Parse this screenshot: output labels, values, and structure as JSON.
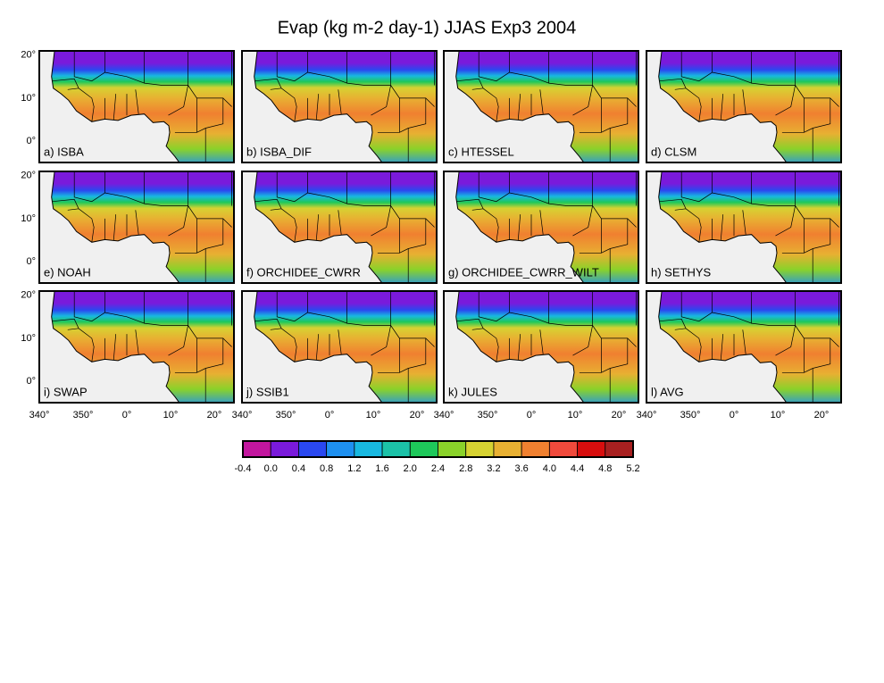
{
  "title": "Evap (kg m-2 day-1) JJAS Exp3 2004",
  "panels": [
    {
      "label": "a) ISBA"
    },
    {
      "label": "b) ISBA_DIF"
    },
    {
      "label": "c) HTESSEL"
    },
    {
      "label": "d) CLSM"
    },
    {
      "label": "e) NOAH"
    },
    {
      "label": "f) ORCHIDEE_CWRR"
    },
    {
      "label": "g) ORCHIDEE_CWRR_WILT"
    },
    {
      "label": "h) SETHYS"
    },
    {
      "label": "i) SWAP"
    },
    {
      "label": "j) SSIB1"
    },
    {
      "label": "k) JULES"
    },
    {
      "label": "l) AVG"
    }
  ],
  "lat_ticks": [
    "20°",
    "10°",
    "0°"
  ],
  "lon_ticks": [
    "340°",
    "350°",
    "0°",
    "10°",
    "20°"
  ],
  "colorbar": {
    "colors": [
      "#c2169e",
      "#7a1adb",
      "#2a48f0",
      "#1e90f0",
      "#18b8e0",
      "#1cc2a8",
      "#1ec85a",
      "#8ad22a",
      "#d6d232",
      "#e8b032",
      "#f08030",
      "#f04a3c",
      "#d80e0e",
      "#a82020"
    ],
    "labels": [
      "-0.4",
      "0.0",
      "0.4",
      "0.8",
      "1.2",
      "1.6",
      "2.0",
      "2.4",
      "2.8",
      "3.2",
      "3.6",
      "4.0",
      "4.4",
      "4.8",
      "5.2"
    ]
  }
}
